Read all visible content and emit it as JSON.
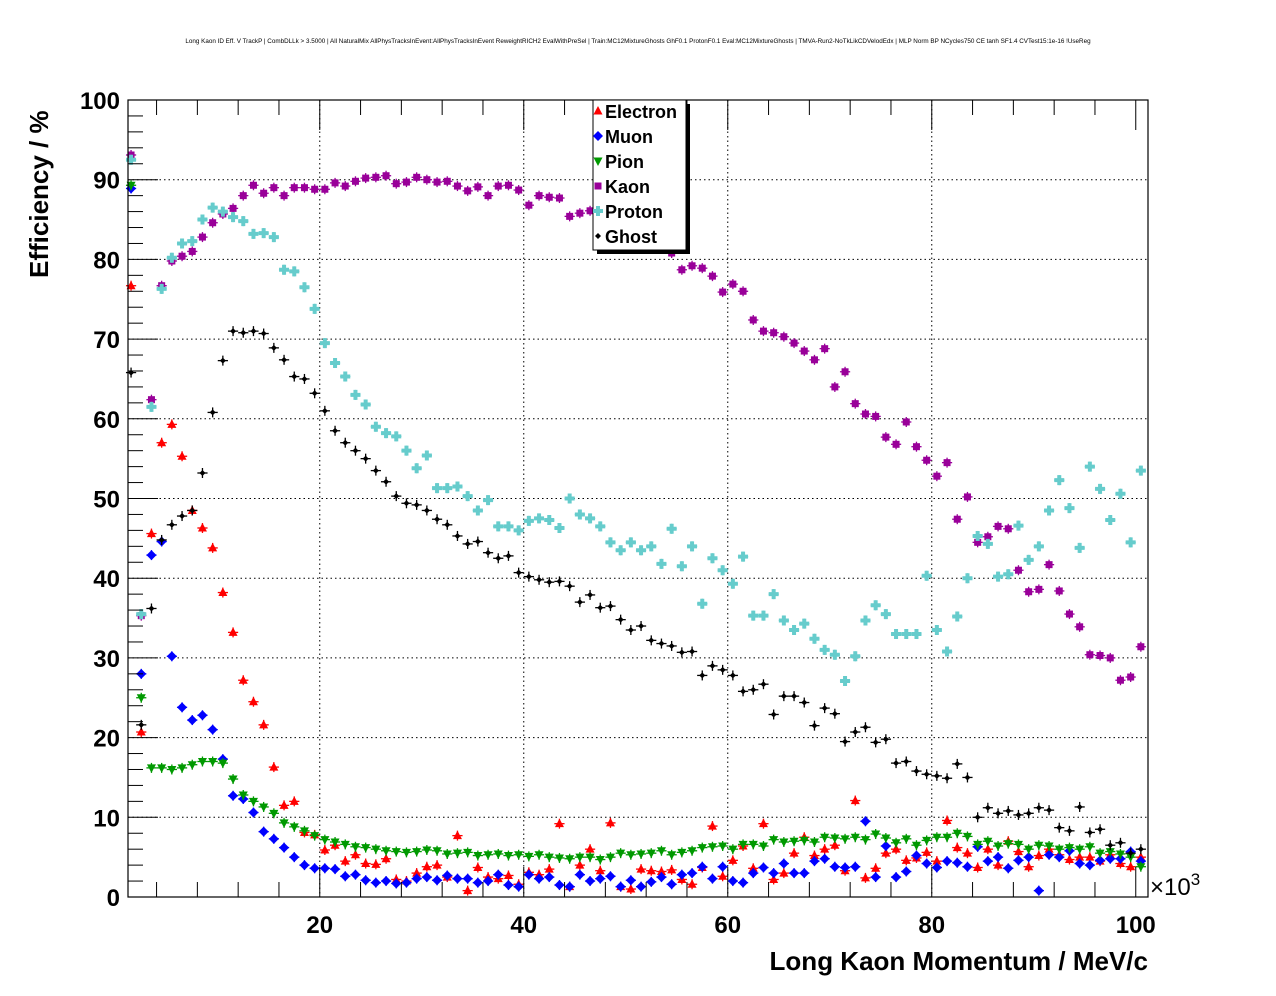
{
  "chart_data": {
    "type": "scatter",
    "title": "Long Kaon ID Eff. V TrackP | CombDLLk > 3.5000 | All NaturalMix AllPhysTracksInEvent:AllPhysTracksInEvent ReweightRICH2 EvalWithPreSel | Train:MC12MixtureGhosts GhF0.1 ProtonF0.1 Eval:MC12MixtureGhosts | TMVA-Run2-NoTkLikCDVelodEdx | MLP Norm BP NCycles750 CE tanh SF1.4 CVTest15:1e-16 !UseReg",
    "xlabel": "Long Kaon Momentum / MeV/c",
    "ylabel": "Efficiency / %",
    "x_multiplier": "×10",
    "x_multiplier_exp": "3",
    "xlim": [
      1.2,
      101.2
    ],
    "ylim": [
      0,
      100
    ],
    "xticks": [
      "20",
      "40",
      "60",
      "80",
      "100"
    ],
    "yticks": [
      "0",
      "10",
      "20",
      "30",
      "40",
      "50",
      "60",
      "70",
      "80",
      "90",
      "100"
    ],
    "grid": true,
    "legend_position": "top-center",
    "x_start": 1.5,
    "x_step": 1,
    "series": [
      {
        "name": "Electron",
        "color": "#ff0000",
        "marker": "triangle-up",
        "values": [
          76.7,
          20.7,
          45.6,
          57.0,
          59.3,
          55.3,
          48.5,
          46.3,
          43.8,
          38.2,
          33.2,
          27.2,
          24.5,
          21.6,
          16.3,
          11.5,
          12.0,
          8.1,
          7.8,
          5.9,
          6.5,
          4.5,
          5.3,
          4.2,
          4.1,
          4.8,
          2.2,
          2.0,
          3.0,
          3.8,
          4.0,
          2.5,
          7.7,
          0.8,
          3.7,
          2.5,
          2.3,
          2.7,
          1.6,
          3.1,
          2.8,
          3.5,
          9.2,
          1.3,
          4.0,
          6.0,
          3.3,
          9.3,
          1.3,
          1.0,
          3.5,
          3.3,
          3.2,
          3.4,
          2.2,
          1.6,
          3.7,
          8.9,
          2.6,
          4.6,
          6.4,
          3.6,
          9.2,
          2.2,
          3.0,
          5.5,
          7.5,
          5.2,
          6.0,
          6.5,
          3.3,
          12.1,
          2.4,
          3.6,
          5.5,
          6.0,
          4.6,
          4.9,
          5.6,
          4.5,
          9.6,
          6.2,
          5.5,
          3.7,
          6.0,
          4.0,
          7.0,
          5.7,
          3.8,
          5.2,
          6.0,
          5.3,
          4.7,
          5.0,
          5.0,
          4.5,
          5.3,
          4.2,
          3.8,
          5.0
        ]
      },
      {
        "name": "Muon",
        "color": "#0000ff",
        "marker": "diamond",
        "values": [
          88.9,
          28.0,
          42.9,
          44.6,
          30.2,
          23.8,
          22.2,
          22.8,
          21.0,
          17.3,
          12.7,
          12.3,
          10.6,
          8.2,
          7.3,
          6.2,
          5.0,
          4.0,
          3.6,
          3.6,
          3.5,
          2.6,
          2.8,
          2.1,
          1.8,
          2.0,
          1.7,
          1.8,
          2.3,
          2.5,
          2.1,
          2.7,
          2.3,
          2.3,
          1.8,
          2.0,
          2.8,
          1.5,
          1.3,
          2.8,
          2.3,
          2.5,
          1.5,
          1.3,
          2.8,
          2.0,
          2.3,
          2.6,
          1.3,
          2.1,
          1.3,
          1.9,
          2.5,
          1.6,
          2.8,
          3.0,
          3.8,
          2.3,
          3.8,
          2.0,
          1.8,
          3.0,
          3.7,
          3.0,
          4.2,
          3.0,
          3.0,
          4.5,
          4.8,
          3.8,
          3.7,
          3.8,
          9.5,
          2.5,
          6.4,
          2.5,
          3.2,
          5.2,
          4.2,
          3.7,
          4.5,
          4.3,
          3.8,
          6.3,
          4.5,
          5.0,
          3.6,
          4.6,
          5.0,
          0.8,
          5.3,
          5.0,
          5.8,
          4.2,
          4.0,
          4.6,
          4.8,
          4.8,
          5.7,
          4.5
        ]
      },
      {
        "name": "Pion",
        "color": "#009900",
        "marker": "triangle-down",
        "values": [
          89.3,
          25.0,
          16.2,
          16.2,
          16.0,
          16.2,
          16.6,
          17.0,
          17.0,
          16.8,
          14.8,
          12.8,
          12.0,
          11.3,
          10.5,
          9.3,
          8.8,
          8.3,
          7.7,
          7.2,
          6.9,
          6.6,
          6.3,
          6.2,
          6.0,
          5.8,
          5.7,
          5.6,
          5.7,
          5.9,
          5.8,
          5.4,
          5.5,
          5.6,
          5.2,
          5.3,
          5.4,
          5.2,
          5.3,
          5.1,
          5.3,
          5.0,
          4.9,
          4.8,
          5.0,
          5.0,
          4.7,
          5.0,
          5.5,
          5.3,
          5.4,
          5.5,
          5.8,
          5.3,
          5.6,
          5.8,
          6.2,
          6.3,
          6.4,
          6.0,
          6.6,
          6.6,
          6.4,
          7.2,
          6.9,
          7.0,
          7.1,
          6.9,
          7.5,
          7.4,
          7.3,
          7.5,
          7.2,
          7.9,
          7.4,
          6.8,
          7.3,
          6.5,
          7.1,
          7.5,
          7.5,
          8.0,
          7.6,
          6.6,
          7.0,
          6.4,
          6.7,
          6.6,
          6.0,
          6.5,
          6.4,
          6.0,
          6.2,
          6.0,
          6.3,
          5.5,
          5.7,
          5.4,
          5.0,
          3.8
        ]
      },
      {
        "name": "Kaon",
        "color": "#990099",
        "marker": "square",
        "values": [
          93.1,
          35.3,
          62.4,
          76.7,
          79.8,
          80.4,
          81.0,
          82.8,
          84.6,
          85.7,
          86.4,
          88.0,
          89.3,
          88.3,
          89.0,
          88.0,
          89.0,
          89.0,
          88.8,
          88.8,
          89.6,
          89.2,
          89.8,
          90.2,
          90.3,
          90.5,
          89.5,
          89.7,
          90.3,
          90.0,
          89.7,
          89.8,
          89.2,
          88.6,
          89.1,
          88.0,
          89.2,
          89.3,
          88.7,
          86.8,
          88.0,
          87.8,
          87.7,
          85.4,
          85.8,
          86.1,
          86.0,
          85.5,
          85.0,
          84.5,
          84.0,
          83.0,
          82.0,
          80.8,
          78.7,
          79.2,
          78.9,
          77.9,
          75.9,
          76.9,
          76.0,
          72.4,
          71.0,
          70.8,
          70.3,
          69.5,
          68.5,
          67.4,
          68.8,
          64.0,
          65.9,
          61.9,
          60.6,
          60.3,
          57.7,
          56.8,
          59.6,
          56.5,
          54.8,
          52.8,
          54.5,
          47.4,
          50.2,
          44.5,
          45.2,
          46.5,
          46.2,
          41.0,
          38.3,
          38.6,
          41.7,
          38.4,
          35.5,
          33.9,
          30.4,
          30.3,
          30.0,
          27.2,
          27.6,
          31.4
        ]
      },
      {
        "name": "Proton",
        "color": "#66cccc",
        "marker": "cross",
        "values": [
          92.5,
          35.5,
          61.5,
          76.3,
          80.2,
          82.0,
          82.3,
          85.0,
          86.5,
          86.0,
          85.3,
          84.8,
          83.2,
          83.3,
          82.8,
          78.7,
          78.5,
          76.5,
          73.8,
          69.5,
          67.0,
          65.3,
          63.0,
          61.8,
          59.0,
          58.2,
          57.8,
          56.0,
          53.8,
          55.4,
          51.3,
          51.3,
          51.5,
          50.3,
          48.5,
          49.8,
          46.5,
          46.5,
          46.0,
          47.2,
          47.5,
          47.3,
          46.3,
          50.0,
          48.0,
          47.5,
          46.5,
          44.5,
          43.5,
          44.5,
          43.5,
          44.0,
          41.8,
          46.2,
          41.5,
          44.0,
          36.8,
          42.5,
          41.0,
          39.3,
          42.7,
          35.3,
          35.3,
          38.0,
          34.7,
          33.5,
          34.3,
          32.4,
          31.0,
          30.4,
          27.1,
          30.2,
          34.7,
          36.6,
          35.5,
          33.0,
          33.0,
          33.0,
          40.3,
          33.5,
          30.8,
          35.2,
          40.0,
          45.3,
          44.3,
          40.2,
          40.5,
          46.6,
          42.3,
          44.0,
          48.5,
          52.3,
          48.8,
          43.8,
          54.0,
          51.2,
          47.3,
          50.6,
          44.5,
          53.5
        ]
      },
      {
        "name": "Ghost",
        "color": "#000000",
        "marker": "small-diamond",
        "values": [
          65.8,
          21.6,
          36.2,
          44.8,
          46.7,
          47.8,
          48.5,
          53.2,
          60.8,
          67.3,
          71.0,
          70.8,
          71.0,
          70.7,
          68.9,
          67.4,
          65.3,
          65.0,
          63.2,
          61.0,
          58.5,
          57.0,
          56.0,
          55.0,
          53.5,
          52.1,
          50.3,
          49.4,
          49.2,
          48.5,
          47.4,
          46.7,
          45.3,
          44.3,
          44.6,
          43.2,
          42.5,
          42.8,
          40.7,
          40.2,
          39.8,
          39.5,
          39.6,
          39.0,
          37.0,
          37.9,
          36.3,
          36.5,
          34.8,
          33.5,
          34.0,
          32.2,
          31.8,
          31.5,
          30.7,
          30.8,
          27.8,
          29.0,
          28.5,
          27.8,
          25.8,
          26.0,
          26.7,
          22.9,
          25.2,
          25.2,
          24.4,
          21.5,
          23.7,
          23.0,
          19.5,
          20.7,
          21.3,
          19.4,
          19.8,
          16.8,
          17.0,
          15.8,
          15.4,
          15.2,
          14.9,
          16.7,
          15.0,
          10.0,
          11.2,
          10.5,
          10.8,
          10.3,
          10.5,
          11.2,
          10.9,
          8.7,
          8.3,
          11.3,
          8.1,
          8.5,
          6.5,
          6.8,
          5.5,
          6.0
        ]
      }
    ]
  }
}
